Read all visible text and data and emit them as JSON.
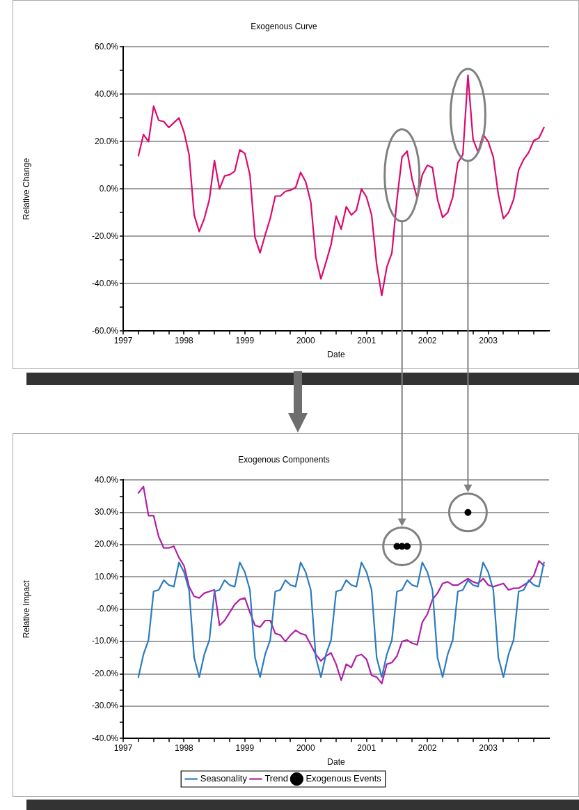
{
  "chart_data": [
    {
      "type": "line",
      "title": "Exogenous Curve",
      "xlabel": "Date",
      "ylabel": "Relative Change",
      "grid": "y",
      "marker": "none",
      "x": [
        "1997-04",
        "1997-05",
        "1997-06",
        "1997-07",
        "1997-08",
        "1997-09",
        "1997-10",
        "1997-11",
        "1997-12",
        "1998-01",
        "1998-02",
        "1998-03",
        "1998-04",
        "1998-05",
        "1998-06",
        "1998-07",
        "1998-08",
        "1998-09",
        "1998-10",
        "1998-11",
        "1998-12",
        "1999-01",
        "1999-02",
        "1999-03",
        "1999-04",
        "1999-05",
        "1999-06",
        "1999-07",
        "1999-08",
        "1999-09",
        "1999-10",
        "1999-11",
        "1999-12",
        "2000-01",
        "2000-02",
        "2000-03",
        "2000-04",
        "2000-05",
        "2000-06",
        "2000-07",
        "2000-08",
        "2000-09",
        "2000-10",
        "2000-11",
        "2000-12",
        "2001-01",
        "2001-02",
        "2001-03",
        "2001-04",
        "2001-05",
        "2001-06",
        "2001-07",
        "2001-08",
        "2001-09",
        "2001-10",
        "2001-11",
        "2001-12",
        "2002-01",
        "2002-02",
        "2002-03",
        "2002-04",
        "2002-05",
        "2002-06",
        "2002-07",
        "2002-08",
        "2002-09",
        "2002-10",
        "2002-11",
        "2002-12",
        "2003-01",
        "2003-02",
        "2003-03",
        "2003-04",
        "2003-05",
        "2003-06",
        "2003-07",
        "2003-08",
        "2003-09",
        "2003-10",
        "2003-11",
        "2003-12"
      ],
      "xlim": [
        "1997",
        "2004"
      ],
      "xticks": [
        "1997",
        {
          "value": "1997-04",
          "label": null
        },
        {
          "value": "1997-07",
          "label": null
        },
        {
          "value": "1997-10",
          "label": null
        },
        "1998",
        {
          "value": "1998-04",
          "label": null
        },
        {
          "value": "1998-07",
          "label": null
        },
        {
          "value": "1998-10",
          "label": null
        },
        "1999",
        {
          "value": "1999-04",
          "label": null
        },
        {
          "value": "1999-07",
          "label": null
        },
        {
          "value": "1999-10",
          "label": null
        },
        "2000",
        {
          "value": "2000-04",
          "label": null
        },
        {
          "value": "2000-07",
          "label": null
        },
        {
          "value": "2000-10",
          "label": null
        },
        "2001",
        {
          "value": "2001-04",
          "label": null
        },
        {
          "value": "2001-07",
          "label": null
        },
        {
          "value": "2001-10",
          "label": null
        },
        "2002",
        {
          "value": "2002-04",
          "label": null
        },
        {
          "value": "2002-07",
          "label": null
        },
        {
          "value": "2002-10",
          "label": null
        },
        "2003",
        {
          "value": "2003-04",
          "label": null
        },
        {
          "value": "2003-07",
          "label": null
        },
        {
          "value": "2003-10",
          "label": null
        }
      ],
      "ylim": [
        -60,
        60
      ],
      "yticks": [
        {
          "value": -60,
          "label": "-60.0%"
        },
        {
          "value": -50,
          "label": null
        },
        {
          "value": -40,
          "label": "-40.0%"
        },
        {
          "value": -30,
          "label": null
        },
        {
          "value": -20,
          "label": "-20.0%"
        },
        {
          "value": -10,
          "label": null
        },
        {
          "value": 0,
          "label": "0.0%"
        },
        {
          "value": 10,
          "label": null
        },
        {
          "value": 20,
          "label": "20.0%"
        },
        {
          "value": 30,
          "label": null
        },
        {
          "value": 40,
          "label": "40.0%"
        },
        {
          "value": 50,
          "label": null
        },
        {
          "value": 60,
          "label": "60.0%"
        }
      ],
      "series": [
        {
          "color": "#dc0a6e",
          "values": [
            14,
            23,
            20,
            35,
            29,
            28.5,
            26,
            28,
            30,
            24,
            14.5,
            -11,
            -18,
            -12.5,
            -4.5,
            12,
            0,
            5.5,
            6,
            7.5,
            16.5,
            15,
            6,
            -20.5,
            -27,
            -19.5,
            -12.5,
            -3,
            -3,
            -1,
            -0.5,
            0.5,
            7,
            3,
            -5.5,
            -29,
            -38,
            -31,
            -23.5,
            -11.5,
            -17,
            -7.5,
            -11,
            -9,
            0,
            -3.5,
            -11,
            -32,
            -45,
            -33,
            -27,
            -4.5,
            13.5,
            16,
            4,
            -4,
            6,
            10,
            9,
            -4.5,
            -12,
            -10,
            -3.5,
            11,
            14.5,
            48,
            21,
            15.5,
            23,
            20,
            13.5,
            -2.5,
            -12.5,
            -10,
            -4.5,
            8,
            12.5,
            15.5,
            20.5,
            21.5,
            26
          ]
        }
      ]
    },
    {
      "type": "line",
      "title": "Exogenous Components",
      "xlabel": "Date",
      "ylabel": "Relative Impact",
      "grid": "y",
      "marker": "none",
      "legend": "bottom",
      "x": [
        "1997-04",
        "1997-05",
        "1997-06",
        "1997-07",
        "1997-08",
        "1997-09",
        "1997-10",
        "1997-11",
        "1997-12",
        "1998-01",
        "1998-02",
        "1998-03",
        "1998-04",
        "1998-05",
        "1998-06",
        "1998-07",
        "1998-08",
        "1998-09",
        "1998-10",
        "1998-11",
        "1998-12",
        "1999-01",
        "1999-02",
        "1999-03",
        "1999-04",
        "1999-05",
        "1999-06",
        "1999-07",
        "1999-08",
        "1999-09",
        "1999-10",
        "1999-11",
        "1999-12",
        "2000-01",
        "2000-02",
        "2000-03",
        "2000-04",
        "2000-05",
        "2000-06",
        "2000-07",
        "2000-08",
        "2000-09",
        "2000-10",
        "2000-11",
        "2000-12",
        "2001-01",
        "2001-02",
        "2001-03",
        "2001-04",
        "2001-05",
        "2001-06",
        "2001-07",
        "2001-08",
        "2001-09",
        "2001-10",
        "2001-11",
        "2001-12",
        "2002-01",
        "2002-02",
        "2002-03",
        "2002-04",
        "2002-05",
        "2002-06",
        "2002-07",
        "2002-08",
        "2002-09",
        "2002-10",
        "2002-11",
        "2002-12",
        "2003-01",
        "2003-02",
        "2003-03",
        "2003-04",
        "2003-05",
        "2003-06",
        "2003-07",
        "2003-08",
        "2003-09",
        "2003-10",
        "2003-11",
        "2003-12"
      ],
      "xlim": [
        "1997",
        "2004"
      ],
      "xticks": [
        "1997",
        {
          "value": "1997-04",
          "label": null
        },
        {
          "value": "1997-07",
          "label": null
        },
        {
          "value": "1997-10",
          "label": null
        },
        "1998",
        {
          "value": "1998-04",
          "label": null
        },
        {
          "value": "1998-07",
          "label": null
        },
        {
          "value": "1998-10",
          "label": null
        },
        "1999",
        {
          "value": "1999-04",
          "label": null
        },
        {
          "value": "1999-07",
          "label": null
        },
        {
          "value": "1999-10",
          "label": null
        },
        "2000",
        {
          "value": "2000-04",
          "label": null
        },
        {
          "value": "2000-07",
          "label": null
        },
        {
          "value": "2000-10",
          "label": null
        },
        "2001",
        {
          "value": "2001-04",
          "label": null
        },
        {
          "value": "2001-07",
          "label": null
        },
        {
          "value": "2001-10",
          "label": null
        },
        "2002",
        {
          "value": "2002-04",
          "label": null
        },
        {
          "value": "2002-07",
          "label": null
        },
        {
          "value": "2002-10",
          "label": null
        },
        "2003",
        {
          "value": "2003-04",
          "label": null
        },
        {
          "value": "2003-07",
          "label": null
        },
        {
          "value": "2003-10",
          "label": null
        }
      ],
      "ylim": [
        -40,
        40
      ],
      "yticks": [
        {
          "value": -40,
          "label": "-40.0%"
        },
        {
          "value": -35,
          "label": null
        },
        {
          "value": -30,
          "label": "-30.0%"
        },
        {
          "value": -25,
          "label": null
        },
        {
          "value": -20,
          "label": "-20.0%"
        },
        {
          "value": -15,
          "label": null
        },
        {
          "value": -10,
          "label": "-10.0%"
        },
        {
          "value": -5,
          "label": null
        },
        {
          "value": 0,
          "label": "-0.0%"
        },
        {
          "value": 5,
          "label": null
        },
        {
          "value": 10,
          "label": "10.0%"
        },
        {
          "value": 15,
          "label": null
        },
        {
          "value": 20,
          "label": "20.0%"
        },
        {
          "value": 25,
          "label": null
        },
        {
          "value": 30,
          "label": "30.0%"
        },
        {
          "value": 35,
          "label": null
        },
        {
          "value": 40,
          "label": "40.0%"
        }
      ],
      "series": [
        {
          "name": "Seasonality",
          "color": "#2b7bc0",
          "values": [
            -21,
            -14,
            -9.5,
            5.5,
            6,
            9,
            7.5,
            7,
            14.5,
            11.5,
            6,
            -15,
            -21,
            -14,
            -9.5,
            5.5,
            6,
            9,
            7.5,
            7,
            14.5,
            11.5,
            6,
            -15,
            -21,
            -14,
            -9.5,
            5.5,
            6,
            9,
            7.5,
            7,
            14.5,
            11.5,
            6,
            -15,
            -21,
            -14,
            -9.5,
            5.5,
            6,
            9,
            7.5,
            7,
            14.5,
            11.5,
            6,
            -15,
            -21,
            -14,
            -9.5,
            5.5,
            6,
            9,
            7.5,
            7,
            14.5,
            11.5,
            6,
            -15,
            -21,
            -14,
            -9.5,
            5.5,
            6,
            9,
            7.5,
            7,
            14.5,
            11.5,
            6,
            -15,
            -21,
            -14,
            -9.5,
            5.5,
            6,
            9,
            7.5,
            7,
            14.5
          ]
        },
        {
          "name": "Trend",
          "color": "#b01fa8",
          "values": [
            36,
            38,
            29,
            29,
            22.5,
            19,
            19,
            19.5,
            16,
            13.5,
            7,
            4,
            3.5,
            5,
            5.5,
            6,
            -5,
            -3.5,
            -1,
            1.5,
            3,
            3.5,
            -1,
            -5,
            -5.5,
            -3.5,
            -3.5,
            -7.5,
            -8,
            -10,
            -8,
            -6.5,
            -7.5,
            -8,
            -11,
            -14,
            -16,
            -14.5,
            -13.5,
            -17,
            -22,
            -17,
            -18,
            -14.5,
            -14,
            -15.5,
            -20.5,
            -21,
            -23,
            -17,
            -16.5,
            -14.5,
            -10,
            -9.5,
            -10.5,
            -11,
            -4,
            -1.5,
            3,
            5,
            8,
            8.5,
            7.5,
            7.5,
            8.5,
            9.5,
            8.5,
            8,
            9.5,
            7.5,
            7,
            7.5,
            8,
            6,
            6.5,
            6.5,
            7.5,
            8.5,
            10.5,
            15,
            13.5
          ]
        },
        {
          "type": "scatter",
          "name": "Exogenous Events",
          "color": "#000000",
          "marker": "circle",
          "x": [
            "2001-07",
            "2001-08",
            "2001-09",
            "2002-09"
          ],
          "values": [
            19.5,
            19.5,
            19.5,
            30
          ]
        }
      ]
    }
  ]
}
